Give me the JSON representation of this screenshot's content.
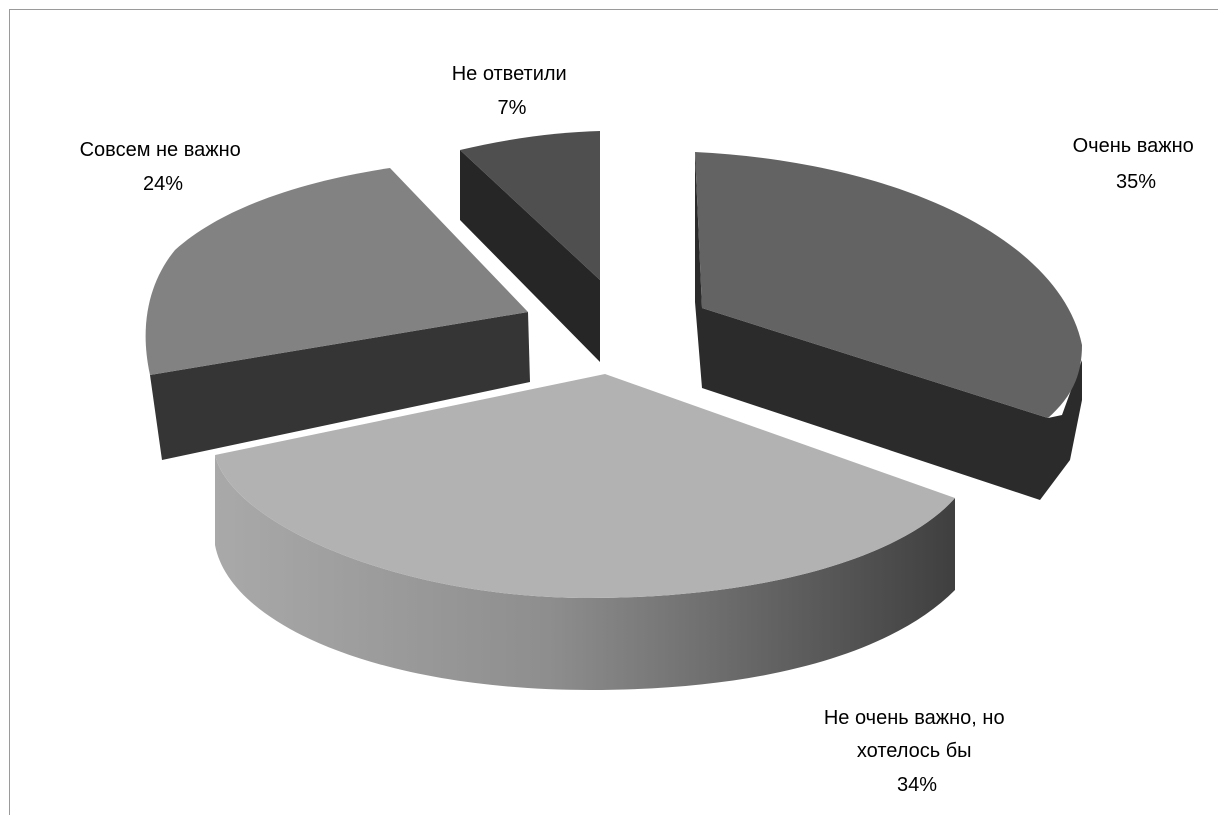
{
  "chart_data": {
    "type": "pie",
    "title": "",
    "style": "3d-exploded",
    "legend": "none",
    "slices": [
      {
        "label": "Очень важно",
        "label_lines": [
          "Очень важно"
        ],
        "percent_text": "35%",
        "value": 35,
        "color": "#636363"
      },
      {
        "label": "Не очень важно, но хотелось бы",
        "label_lines": [
          "Не очень важно, но",
          "хотелось бы"
        ],
        "percent_text": "34%",
        "value": 34,
        "color": "#b2b2b2"
      },
      {
        "label": "Совсем не важно",
        "label_lines": [
          "Совсем не важно"
        ],
        "percent_text": "24%",
        "value": 24,
        "color": "#828282"
      },
      {
        "label": "Не ответили",
        "label_lines": [
          "Не ответили"
        ],
        "percent_text": "7%",
        "value": 7,
        "color": "#4f4f4f"
      }
    ]
  }
}
